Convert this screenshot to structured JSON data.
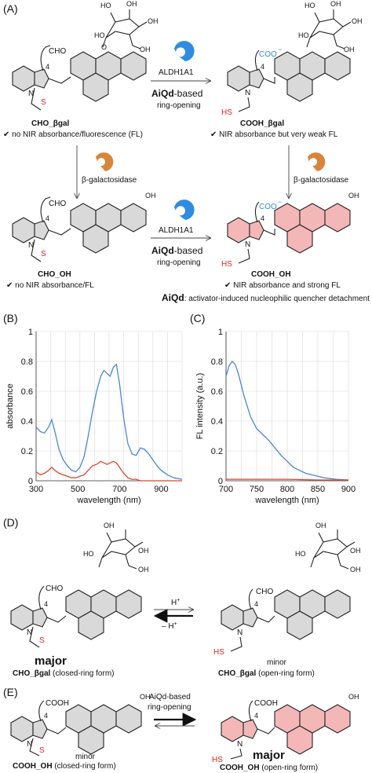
{
  "panels": {
    "A": "(A)",
    "B": "(B)",
    "C": "(C)",
    "D": "(D)",
    "E": "(E)"
  },
  "panel_a": {
    "enzyme_top": "ALDH1A1",
    "enzyme_mid": "ALDH1A1",
    "aiqd_bold_1": "AiQd",
    "aiqd_rest_1": "-based",
    "ring_opening_1": "ring-opening",
    "aiqd_bold_2": "AiQd",
    "aiqd_rest_2": "-based",
    "ring_opening_2": "ring-opening",
    "galactosidase_left": "β-galactosidase",
    "galactosidase_right": "β-galactosidase",
    "cmp1_name": "CHO_βgal",
    "cmp1_note": "✔ no NIR absorbance/fluorescence (FL)",
    "cmp2_name": "COOH_βgal",
    "cmp2_note": "✔ NIR absorbance but very weak FL",
    "cmp3_name": "CHO_OH",
    "cmp3_note": "✔ no NIR absorbance/FL",
    "cmp4_name": "COOH_OH",
    "cmp4_note": "✔ NIR absorbance and strong FL",
    "footnote_bold": "AiQd",
    "footnote_rest": ": activator-induced nucleophilic quencher detachment",
    "label_cho": "CHO",
    "label_coo": "COO",
    "label_coo_sup": "−",
    "label_four": "4",
    "label_s": "S",
    "label_n": "N",
    "label_hs": "HS",
    "label_o": "O",
    "label_oh": "OH",
    "label_ho": "HO"
  },
  "chart_data": [
    {
      "type": "line",
      "xlabel": "wavelength (nm)",
      "ylabel": "absorbance",
      "xlim": [
        300,
        1000
      ],
      "ylim": [
        0,
        1
      ],
      "xticks": [
        300,
        500,
        700,
        900
      ],
      "yticks": [
        0,
        0.2,
        0.4,
        0.6,
        0.8,
        1
      ],
      "ytick_labels": [
        "0",
        "0.2",
        "0.4",
        "0.6",
        "0.8",
        "1"
      ],
      "grid": true,
      "series": [
        {
          "color": "#4a86d4",
          "x": [
            300,
            320,
            340,
            360,
            375,
            390,
            410,
            430,
            450,
            470,
            490,
            510,
            530,
            550,
            570,
            590,
            610,
            625,
            640,
            655,
            670,
            685,
            700,
            720,
            740,
            760,
            780,
            800,
            820,
            840,
            860,
            880,
            900,
            930,
            960,
            1000
          ],
          "y": [
            0.36,
            0.33,
            0.32,
            0.36,
            0.41,
            0.33,
            0.21,
            0.14,
            0.1,
            0.07,
            0.06,
            0.09,
            0.16,
            0.3,
            0.46,
            0.6,
            0.7,
            0.74,
            0.72,
            0.7,
            0.76,
            0.78,
            0.65,
            0.42,
            0.25,
            0.18,
            0.17,
            0.22,
            0.21,
            0.18,
            0.14,
            0.1,
            0.07,
            0.04,
            0.02,
            0.01
          ]
        },
        {
          "color": "#e0452f",
          "x": [
            300,
            320,
            340,
            360,
            375,
            390,
            410,
            430,
            450,
            470,
            490,
            510,
            530,
            550,
            570,
            590,
            610,
            625,
            640,
            655,
            670,
            685,
            700,
            720,
            740,
            760,
            780,
            800,
            850,
            900,
            1000
          ],
          "y": [
            0.06,
            0.04,
            0.05,
            0.07,
            0.09,
            0.07,
            0.05,
            0.04,
            0.03,
            0.02,
            0.02,
            0.03,
            0.04,
            0.07,
            0.1,
            0.11,
            0.13,
            0.12,
            0.11,
            0.12,
            0.13,
            0.12,
            0.09,
            0.05,
            0.02,
            0.01,
            0.01,
            0.0,
            0.0,
            0.0,
            0.0
          ]
        }
      ]
    },
    {
      "type": "line",
      "xlabel": "wavelength (nm)",
      "ylabel": "FL intensity (a.u.)",
      "xlim": [
        700,
        900
      ],
      "ylim": [
        0,
        1
      ],
      "xticks": [
        700,
        750,
        800,
        850,
        900
      ],
      "yticks": [
        0,
        0.2,
        0.4,
        0.6,
        0.8,
        1
      ],
      "ytick_labels": [
        "0",
        "0.2",
        "0.4",
        "0.6",
        "0.8",
        "1"
      ],
      "grid": true,
      "series": [
        {
          "color": "#4a86d4",
          "x": [
            700,
            705,
            710,
            715,
            720,
            730,
            740,
            750,
            760,
            770,
            780,
            790,
            800,
            810,
            820,
            830,
            840,
            850,
            860,
            880,
            900
          ],
          "y": [
            0.7,
            0.77,
            0.8,
            0.78,
            0.72,
            0.56,
            0.43,
            0.35,
            0.31,
            0.27,
            0.22,
            0.17,
            0.13,
            0.09,
            0.07,
            0.05,
            0.04,
            0.03,
            0.02,
            0.01,
            0.005
          ]
        },
        {
          "color": "#e0452f",
          "x": [
            700,
            750,
            800,
            850,
            900
          ],
          "y": [
            0.01,
            0.01,
            0.01,
            0.005,
            0.005
          ]
        }
      ]
    }
  ],
  "panel_d": {
    "h_plus": "H",
    "minus_h_plus": "– H",
    "plus_sup": "+",
    "major": "major",
    "minor": "minor",
    "left_name": "CHO_βgal",
    "left_form": "(closed-ring form)",
    "right_name": "CHO_βgal",
    "right_form": "(open-ring form)"
  },
  "panel_e": {
    "arrow_text_1": "AiQd-based",
    "arrow_text_2": "ring-opening",
    "minor": "minor",
    "major": "major",
    "left_name": "COOH_OH",
    "left_form": "(closed-ring form)",
    "right_name": "COOH_OH",
    "right_form": "(open-ring form)",
    "label_cooh": "COOH",
    "label_four": "4"
  }
}
